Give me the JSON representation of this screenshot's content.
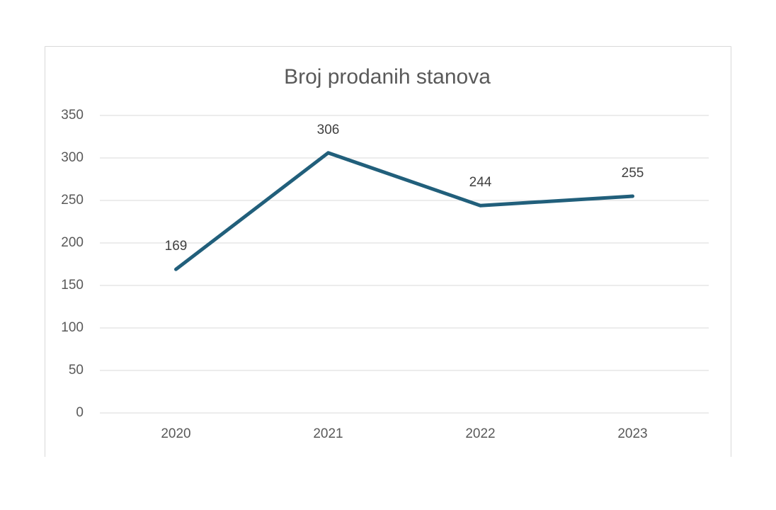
{
  "chart_data": {
    "type": "line",
    "title": "Broj prodanih stanova",
    "categories": [
      "2020",
      "2021",
      "2022",
      "2023"
    ],
    "series": [
      {
        "name": "Broj prodanih stanova",
        "color": "#215f7b",
        "values": [
          169,
          306,
          244,
          255
        ]
      }
    ],
    "ylim": [
      0,
      350
    ],
    "yticks": [
      0,
      50,
      100,
      150,
      200,
      250,
      300,
      350
    ],
    "grid": true,
    "data_labels": true
  }
}
